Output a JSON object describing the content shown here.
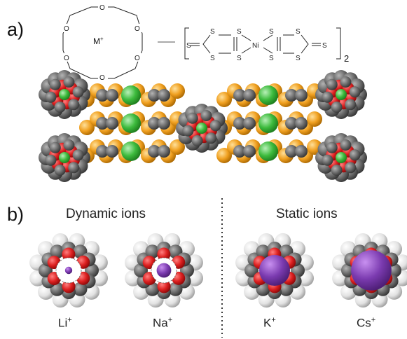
{
  "panel_a": {
    "label": "a)",
    "crown_ether_cation": "M",
    "cation_charge": "+",
    "complex_atoms": {
      "sulfur": "S",
      "nickel": "Ni"
    },
    "complex_subscript": "2"
  },
  "panel_b": {
    "label": "b)",
    "dynamic_title": "Dynamic ions",
    "static_title": "Static ions",
    "ions": [
      {
        "symbol": "Li",
        "charge": "+",
        "group": "dynamic",
        "relative_size": 0.13
      },
      {
        "symbol": "Na",
        "charge": "+",
        "group": "dynamic",
        "relative_size": 0.26
      },
      {
        "symbol": "K",
        "charge": "+",
        "group": "static",
        "relative_size": 0.55
      },
      {
        "symbol": "Cs",
        "charge": "+",
        "group": "static",
        "relative_size": 0.72
      }
    ]
  },
  "colors": {
    "oxygen": "#d42020",
    "carbon": "#6e6e6e",
    "hydrogen": "#e6e6e6",
    "sulfur": "#f0a020",
    "metal_in_stack": "#3dbb3d",
    "ion": "#7b3bb0",
    "separator": "#222222"
  }
}
